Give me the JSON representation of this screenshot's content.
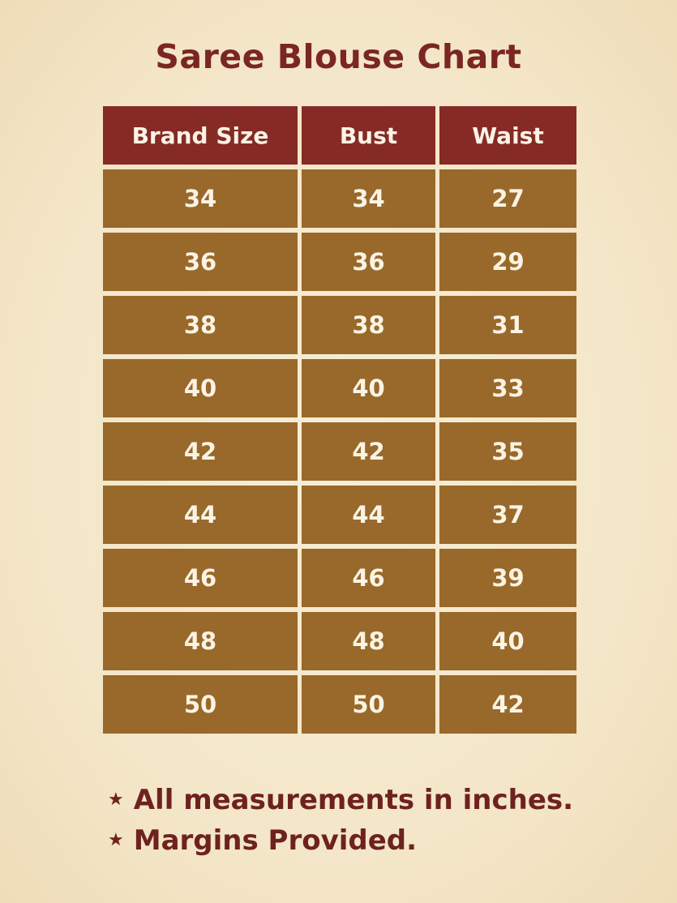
{
  "title": "Saree Blouse Chart",
  "colors": {
    "title": "#7b2622",
    "header_bg": "#862a26",
    "cell_bg": "#98692a",
    "background": "#f5e9cc"
  },
  "table": {
    "headers": [
      "Brand Size",
      "Bust",
      "Waist"
    ],
    "rows": [
      [
        "34",
        "34",
        "27"
      ],
      [
        "36",
        "36",
        "29"
      ],
      [
        "38",
        "38",
        "31"
      ],
      [
        "40",
        "40",
        "33"
      ],
      [
        "42",
        "42",
        "35"
      ],
      [
        "44",
        "44",
        "37"
      ],
      [
        "46",
        "46",
        "39"
      ],
      [
        "48",
        "48",
        "40"
      ],
      [
        "50",
        "50",
        "42"
      ]
    ]
  },
  "notes": [
    {
      "icon": "star-icon",
      "symbol": "★",
      "text": "All measurements in inches."
    },
    {
      "icon": "star-icon",
      "symbol": "★",
      "text": "Margins Provided."
    }
  ]
}
